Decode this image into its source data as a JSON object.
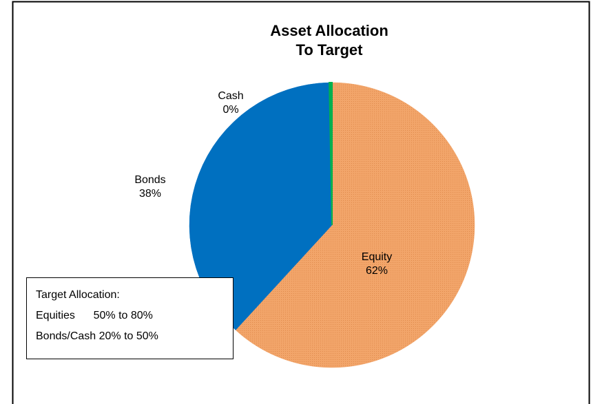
{
  "chart_data": {
    "type": "pie",
    "title": [
      "Asset Allocation",
      "To Target"
    ],
    "categories": [
      "Equity",
      "Bonds",
      "Cash"
    ],
    "values": [
      62,
      38,
      0.3
    ],
    "value_labels": [
      "62%",
      "38%",
      "0%"
    ],
    "colors": [
      "#f2a56a",
      "#0070c0",
      "#00b050"
    ],
    "annotation": [
      "Target Allocation:",
      "Equities      50% to 80%",
      "Bonds/Cash 20% to 50%"
    ]
  }
}
